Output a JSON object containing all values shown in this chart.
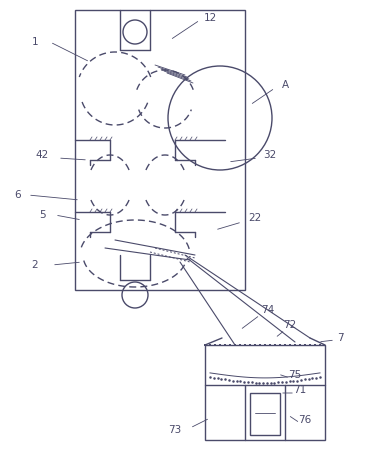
{
  "bg_color": "#ffffff",
  "line_color": "#4a4a6a",
  "label_color": "#4a4a6a",
  "fig_width": 3.69,
  "fig_height": 4.73,
  "dpi": 100
}
